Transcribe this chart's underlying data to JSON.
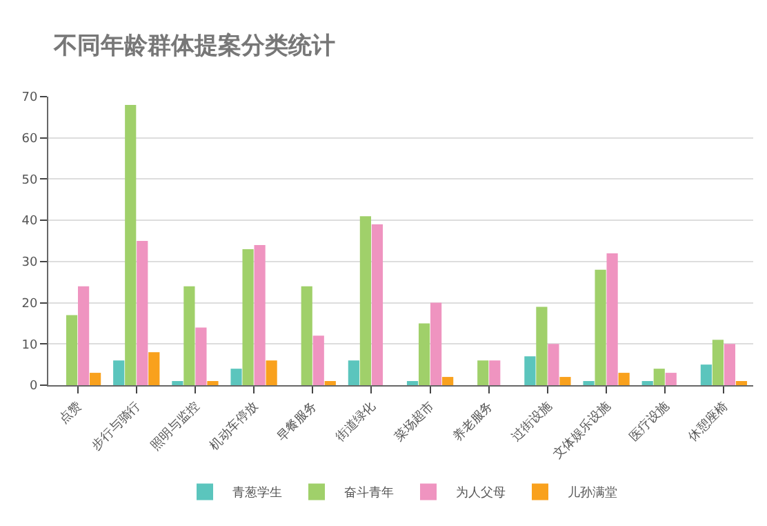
{
  "chart_data": {
    "type": "bar",
    "title": "不同年龄群体提案分类统计",
    "categories": [
      "点赞",
      "步行与骑行",
      "照明与监控",
      "机动车停放",
      "早餐服务",
      "街道绿化",
      "菜场超市",
      "养老服务",
      "过街设施",
      "文体娱乐设施",
      "医疗设施",
      "休憩座椅"
    ],
    "series": [
      {
        "name": "青葱学生",
        "color": "#5bc5bd",
        "values": [
          0,
          6,
          1,
          4,
          0,
          6,
          1,
          0,
          7,
          1,
          1,
          5
        ]
      },
      {
        "name": "奋斗青年",
        "color": "#a0d06a",
        "values": [
          17,
          68,
          24,
          33,
          24,
          41,
          15,
          6,
          19,
          28,
          4,
          11
        ]
      },
      {
        "name": "为人父母",
        "color": "#ef94c0",
        "values": [
          24,
          35,
          14,
          34,
          12,
          39,
          20,
          6,
          10,
          32,
          3,
          10
        ]
      },
      {
        "name": "儿孙满堂",
        "color": "#f9a11d",
        "values": [
          3,
          8,
          1,
          6,
          1,
          0,
          2,
          0,
          2,
          3,
          0,
          1
        ]
      }
    ],
    "ylim": [
      0,
      70
    ],
    "yticks": [
      0,
      10,
      20,
      30,
      40,
      50,
      60,
      70
    ],
    "grid": "y",
    "legend": "bottom"
  }
}
